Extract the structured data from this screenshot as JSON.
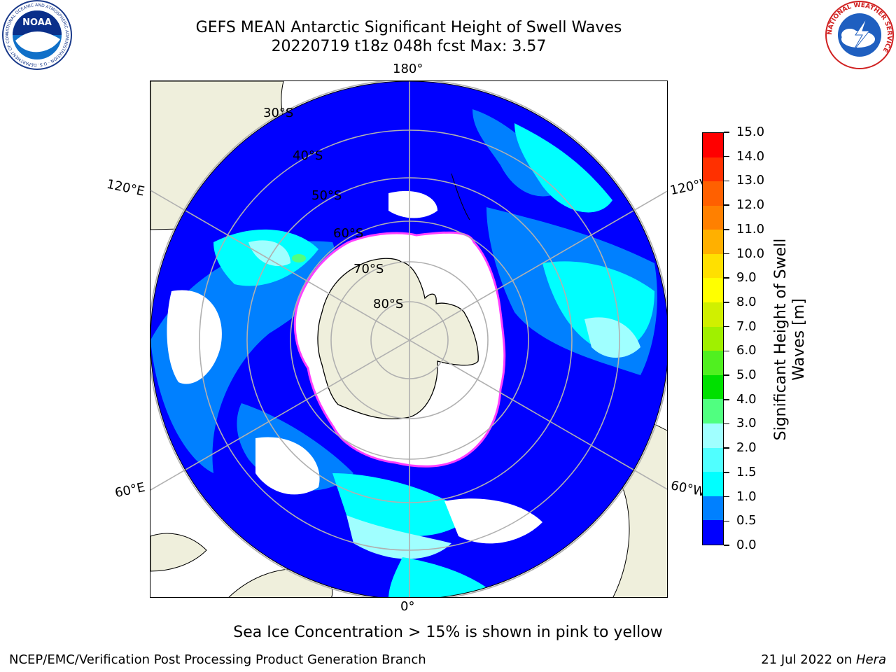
{
  "header": {
    "title": "GEFS MEAN Antarctic Significant Height of Swell Waves",
    "subtitle": "20220719 t18z 048h fcst   Max: 3.57"
  },
  "logos": {
    "noaa": {
      "text": "NOAA",
      "ring_text": "NATIONAL OCEANIC AND ATMOSPHERIC ADMINISTRATION · U.S. DEPARTMENT OF COMMERCE"
    },
    "nws": {
      "ring_text": "NATIONAL WEATHER SERVICE"
    }
  },
  "map": {
    "projection": "south-polar-stereographic",
    "longitude_labels": [
      "180°",
      "120°E",
      "120°W",
      "60°E",
      "60°W",
      "0°"
    ],
    "latitude_labels": [
      "30°S",
      "40°S",
      "50°S",
      "60°S",
      "70°S",
      "80°S"
    ],
    "colors": {
      "ocean_low": "#0000ff",
      "ocean_mid": "#0080ff",
      "ocean_high": "#00ffff",
      "land": "#efefdc",
      "sea_ice": "#ffffff",
      "ice_edge": "#ff40ff",
      "grid": "#b0b0b0"
    }
  },
  "colorbar": {
    "title": "Significant Height of Swell Waves [m]",
    "ticks": [
      "0.0",
      "0.5",
      "1.0",
      "1.5",
      "2.0",
      "3.0",
      "4.0",
      "5.0",
      "6.0",
      "7.0",
      "8.0",
      "9.0",
      "10.0",
      "11.0",
      "12.0",
      "13.0",
      "14.0",
      "15.0"
    ],
    "colors": [
      "#0000ff",
      "#0080ff",
      "#00ffff",
      "#50ffff",
      "#a0ffff",
      "#50ff80",
      "#00e000",
      "#50f020",
      "#a0f000",
      "#d0f000",
      "#ffff00",
      "#ffe000",
      "#ffb000",
      "#ff8000",
      "#ff6000",
      "#ff3000",
      "#ff0000"
    ]
  },
  "note": "Sea Ice Concentration > 15% is shown in pink to yellow",
  "footer": {
    "left": "NCEP/EMC/Verification Post Processing Product Generation Branch",
    "right_prefix": "21 Jul 2022 on ",
    "right_machine": "Hera"
  }
}
